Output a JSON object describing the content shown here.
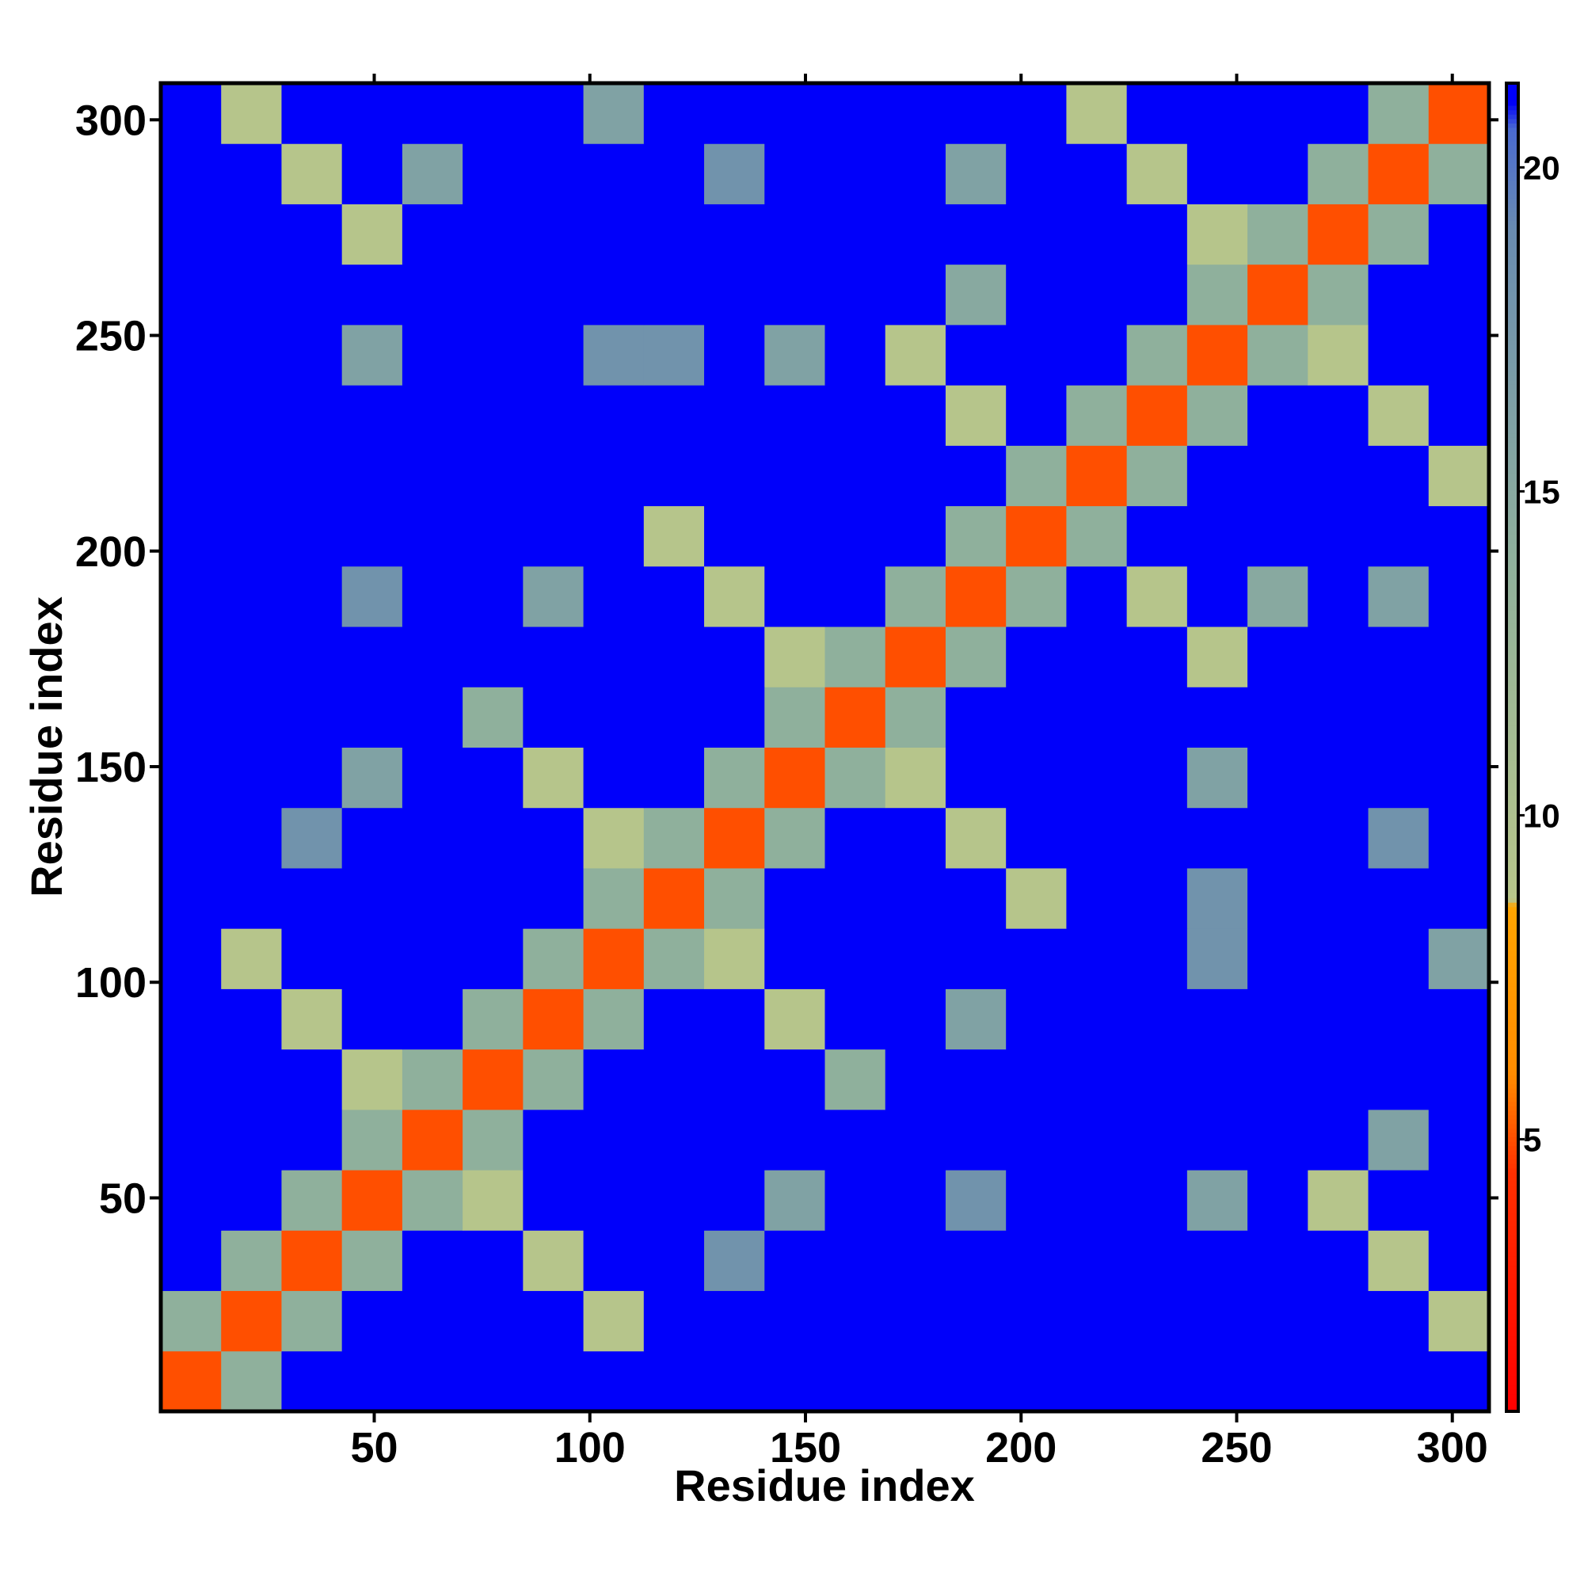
{
  "chart_data": {
    "type": "heatmap",
    "xlabel": "Residue index",
    "ylabel": "Residue index",
    "xlim": [
      0.5,
      308.5
    ],
    "ylim": [
      0.5,
      308.5
    ],
    "xticks": [
      50,
      100,
      150,
      200,
      250,
      300
    ],
    "yticks": [
      50,
      100,
      150,
      200,
      250,
      300
    ],
    "x_bins": [
      0.5,
      14.5,
      28.5,
      42.5,
      56.5,
      70.5,
      84.5,
      98.5,
      112.5,
      126.5,
      140.5,
      154.5,
      168.5,
      182.5,
      196.5,
      210.5,
      224.5,
      238.5,
      252.5,
      266.5,
      280.5,
      294.5,
      308.5
    ],
    "y_bins": [
      0.5,
      14.5,
      28.5,
      42.5,
      56.5,
      70.5,
      84.5,
      98.5,
      112.5,
      126.5,
      140.5,
      154.5,
      168.5,
      182.5,
      196.5,
      210.5,
      224.5,
      238.5,
      252.5,
      266.5,
      280.5,
      294.5,
      308.5
    ],
    "values": [
      [
        5,
        14,
        21,
        21,
        21,
        21,
        21,
        21,
        21,
        21,
        21,
        21,
        21,
        21,
        21,
        21,
        21,
        21,
        21,
        21,
        21,
        21
      ],
      [
        14,
        5,
        14,
        21,
        21,
        21,
        21,
        9,
        21,
        21,
        21,
        21,
        21,
        21,
        21,
        21,
        21,
        21,
        21,
        21,
        21,
        9
      ],
      [
        21,
        14,
        5,
        14,
        21,
        21,
        9,
        21,
        21,
        18,
        21,
        21,
        21,
        21,
        21,
        21,
        21,
        21,
        21,
        21,
        9,
        21
      ],
      [
        21,
        21,
        14,
        5,
        14,
        9,
        21,
        21,
        21,
        21,
        16,
        21,
        21,
        18,
        21,
        21,
        21,
        16,
        21,
        9,
        21,
        21
      ],
      [
        21,
        21,
        21,
        14,
        5,
        14,
        21,
        21,
        21,
        21,
        21,
        21,
        21,
        21,
        21,
        21,
        21,
        21,
        21,
        21,
        16,
        21
      ],
      [
        21,
        21,
        21,
        9,
        14,
        5,
        14,
        21,
        21,
        21,
        21,
        14,
        21,
        21,
        21,
        21,
        21,
        21,
        21,
        21,
        21,
        21
      ],
      [
        21,
        21,
        9,
        21,
        21,
        14,
        5,
        14,
        21,
        21,
        9,
        21,
        21,
        16,
        21,
        21,
        21,
        21,
        21,
        21,
        21,
        21
      ],
      [
        21,
        9,
        21,
        21,
        21,
        21,
        14,
        5,
        14,
        9,
        21,
        21,
        21,
        21,
        21,
        21,
        21,
        18,
        21,
        21,
        21,
        16
      ],
      [
        21,
        21,
        21,
        21,
        21,
        21,
        21,
        14,
        5,
        14,
        21,
        21,
        21,
        21,
        9,
        21,
        21,
        18,
        21,
        21,
        21,
        21
      ],
      [
        21,
        21,
        18,
        21,
        21,
        21,
        21,
        9,
        14,
        5,
        14,
        21,
        21,
        9,
        21,
        21,
        21,
        21,
        21,
        21,
        18,
        21
      ],
      [
        21,
        21,
        21,
        16,
        21,
        21,
        9,
        21,
        21,
        14,
        5,
        14,
        9,
        21,
        21,
        21,
        21,
        16,
        21,
        21,
        21,
        21
      ],
      [
        21,
        21,
        21,
        21,
        21,
        14,
        21,
        21,
        21,
        21,
        14,
        5,
        14,
        21,
        21,
        21,
        21,
        21,
        21,
        21,
        21,
        21
      ],
      [
        21,
        21,
        21,
        21,
        21,
        21,
        21,
        21,
        21,
        21,
        9,
        14,
        5,
        14,
        21,
        21,
        21,
        9,
        21,
        21,
        21,
        21
      ],
      [
        21,
        21,
        21,
        18,
        21,
        21,
        16,
        21,
        21,
        9,
        21,
        21,
        14,
        5,
        14,
        21,
        9,
        21,
        15,
        21,
        16,
        21
      ],
      [
        21,
        21,
        21,
        21,
        21,
        21,
        21,
        21,
        9,
        21,
        21,
        21,
        21,
        14,
        5,
        14,
        21,
        21,
        21,
        21,
        21,
        21
      ],
      [
        21,
        21,
        21,
        21,
        21,
        21,
        21,
        21,
        21,
        21,
        21,
        21,
        21,
        21,
        14,
        5,
        14,
        21,
        21,
        21,
        21,
        9
      ],
      [
        21,
        21,
        21,
        21,
        21,
        21,
        21,
        21,
        21,
        21,
        21,
        21,
        21,
        9,
        21,
        14,
        5,
        14,
        21,
        21,
        9,
        21
      ],
      [
        21,
        21,
        21,
        16,
        21,
        21,
        21,
        18,
        18,
        21,
        16,
        21,
        9,
        21,
        21,
        21,
        14,
        5,
        14,
        9,
        21,
        21
      ],
      [
        21,
        21,
        21,
        21,
        21,
        21,
        21,
        21,
        21,
        21,
        21,
        21,
        21,
        15,
        21,
        21,
        21,
        14,
        5,
        14,
        21,
        21
      ],
      [
        21,
        21,
        21,
        9,
        21,
        21,
        21,
        21,
        21,
        21,
        21,
        21,
        21,
        21,
        21,
        21,
        21,
        9,
        14,
        5,
        14,
        21
      ],
      [
        21,
        21,
        9,
        21,
        16,
        21,
        21,
        21,
        21,
        18,
        21,
        21,
        21,
        16,
        21,
        21,
        9,
        21,
        21,
        14,
        5,
        14
      ],
      [
        21,
        9,
        21,
        21,
        21,
        21,
        21,
        16,
        21,
        21,
        21,
        21,
        21,
        21,
        21,
        9,
        21,
        21,
        21,
        21,
        14,
        5
      ]
    ],
    "colorbar": {
      "lim": [
        0.8,
        21.3
      ],
      "ticks": [
        5,
        10,
        15,
        20
      ],
      "stops": [
        {
          "value": 0.8,
          "color": "#ff0000"
        },
        {
          "value": 4.5,
          "color": "#ff3000"
        },
        {
          "value": 6,
          "color": "#ff8c00"
        },
        {
          "value": 8.6,
          "color": "#ffa500"
        },
        {
          "value": 8.7,
          "color": "#b8c68a"
        },
        {
          "value": 14,
          "color": "#8fb09c"
        },
        {
          "value": 19,
          "color": "#6a8cb0"
        },
        {
          "value": 20.6,
          "color": "#4a6ad0"
        },
        {
          "value": 21,
          "color": "#0000fa"
        },
        {
          "value": 21.3,
          "color": "#0000fa"
        }
      ]
    }
  }
}
